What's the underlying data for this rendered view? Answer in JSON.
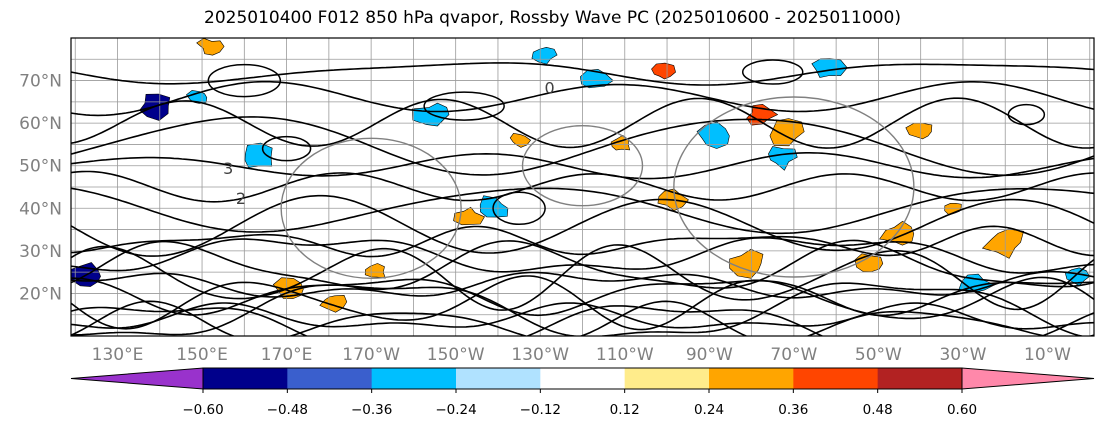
{
  "title": "2025010400 F012 850 hPa qvapor, Rossby Wave PC (2025010600 - 2025011000)",
  "chart_data": {
    "type": "contour_map",
    "title": "2025010400 F012 850 hPa qvapor, Rossby Wave PC (2025010600 - 2025011000)",
    "xlabel": "",
    "ylabel": "",
    "x_tick_labels": [
      "130°E",
      "150°E",
      "170°E",
      "170°W",
      "150°W",
      "130°W",
      "110°W",
      "90°W",
      "70°W",
      "50°W",
      "30°W",
      "10°W"
    ],
    "x_tick_lon": [
      130,
      150,
      170,
      190,
      210,
      230,
      250,
      270,
      290,
      310,
      330,
      350
    ],
    "y_tick_labels": [
      "20°N",
      "30°N",
      "40°N",
      "50°N",
      "60°N",
      "70°N"
    ],
    "y_tick_lat": [
      20,
      30,
      40,
      50,
      60,
      70
    ],
    "lon_range": [
      119,
      361
    ],
    "lat_range": [
      10,
      80
    ],
    "grid": true,
    "contour_labels": [
      "3",
      "2",
      "0"
    ],
    "colorbar": {
      "orientation": "horizontal",
      "extend": "both",
      "tick_labels": [
        "−0.60",
        "−0.48",
        "−0.36",
        "−0.24",
        "−0.12",
        "0.12",
        "0.24",
        "0.36",
        "0.48",
        "0.60"
      ],
      "bounds": [
        -0.6,
        -0.48,
        -0.36,
        -0.24,
        -0.12,
        0.12,
        0.24,
        0.36,
        0.48,
        0.6
      ],
      "under_color": "#9932cc",
      "over_color": "#ff88aa",
      "bin_colors": [
        "#00008b",
        "#3a5fcd",
        "#00bfff",
        "#b0e2ff",
        "#ffffff",
        "#ffec8b",
        "#ffa500",
        "#ff4500",
        "#b22222"
      ]
    },
    "shaded_patches": [
      {
        "lon": 139,
        "lat": 64,
        "value": -0.5
      },
      {
        "lon": 163,
        "lat": 52,
        "value": -0.3
      },
      {
        "lon": 149,
        "lat": 66,
        "value": -0.3
      },
      {
        "lon": 123,
        "lat": 24,
        "value": -0.5
      },
      {
        "lon": 213,
        "lat": 38,
        "value": 0.3
      },
      {
        "lon": 219,
        "lat": 40,
        "value": -0.3
      },
      {
        "lon": 249,
        "lat": 55,
        "value": 0.3
      },
      {
        "lon": 261,
        "lat": 42,
        "value": 0.3
      },
      {
        "lon": 282,
        "lat": 62,
        "value": 0.42
      },
      {
        "lon": 288,
        "lat": 58,
        "value": 0.3
      },
      {
        "lon": 287,
        "lat": 52,
        "value": -0.3
      },
      {
        "lon": 259,
        "lat": 72,
        "value": 0.36
      },
      {
        "lon": 243,
        "lat": 70,
        "value": -0.3
      },
      {
        "lon": 298,
        "lat": 73,
        "value": -0.3
      },
      {
        "lon": 320,
        "lat": 58,
        "value": 0.3
      },
      {
        "lon": 315,
        "lat": 34,
        "value": 0.3
      },
      {
        "lon": 328,
        "lat": 40,
        "value": 0.3
      },
      {
        "lon": 340,
        "lat": 32,
        "value": 0.3
      },
      {
        "lon": 357,
        "lat": 24,
        "value": -0.3
      },
      {
        "lon": 191,
        "lat": 25,
        "value": 0.3
      },
      {
        "lon": 171,
        "lat": 21,
        "value": 0.3
      },
      {
        "lon": 205,
        "lat": 62,
        "value": -0.3
      },
      {
        "lon": 231,
        "lat": 76,
        "value": -0.3
      },
      {
        "lon": 152,
        "lat": 78,
        "value": 0.3
      },
      {
        "lon": 181,
        "lat": 18,
        "value": 0.3
      },
      {
        "lon": 279,
        "lat": 27,
        "value": 0.3
      },
      {
        "lon": 308,
        "lat": 27,
        "value": 0.3
      },
      {
        "lon": 333,
        "lat": 22,
        "value": -0.3
      },
      {
        "lon": 271,
        "lat": 57,
        "value": -0.3
      },
      {
        "lon": 225,
        "lat": 56,
        "value": 0.3
      }
    ]
  }
}
